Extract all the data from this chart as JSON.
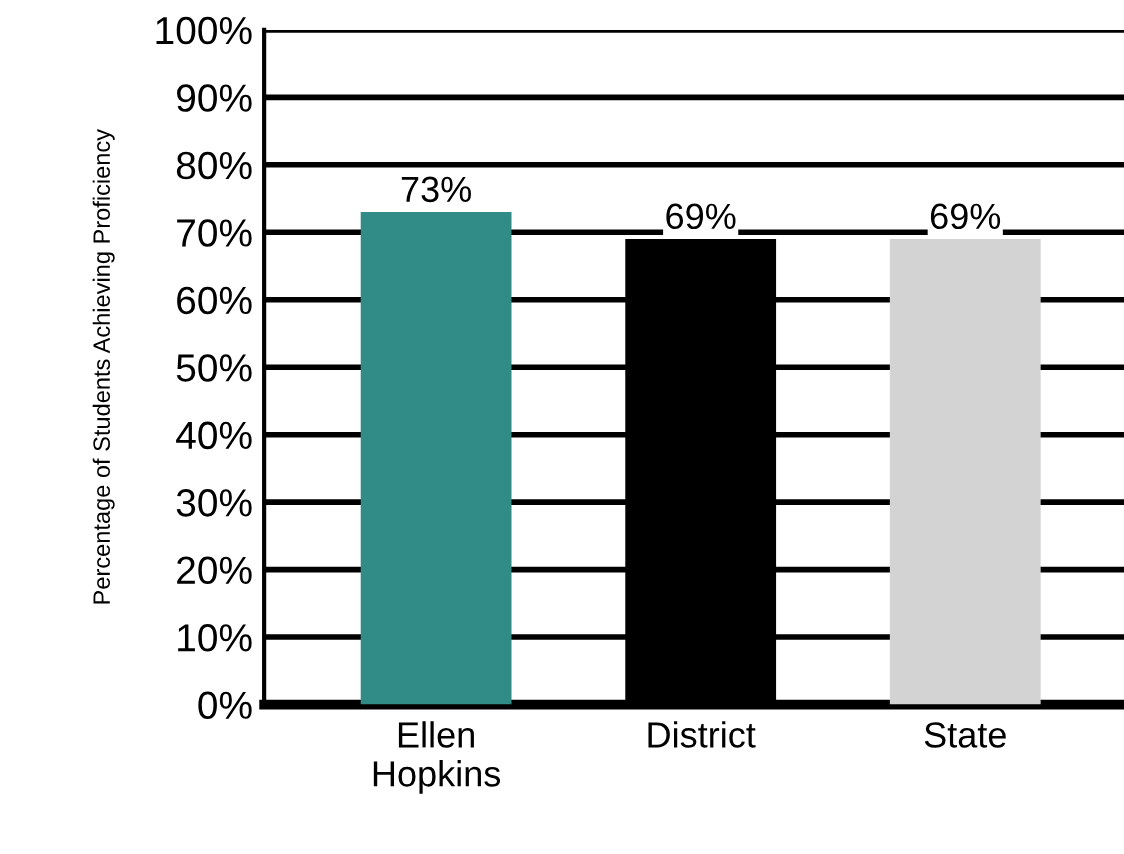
{
  "chart_data": {
    "type": "bar",
    "ylabel": "Percentage of Students Achieving Proficiency",
    "categories": [
      "Ellen\nHopkins",
      "District",
      "State"
    ],
    "values": [
      73,
      69,
      69
    ],
    "colors": [
      "#318c88",
      "#000000",
      "#d3d3d3"
    ],
    "value_labels": [
      "73%",
      "69%",
      "69%"
    ],
    "ylim": [
      0,
      100
    ],
    "yticks": [
      {
        "value": 0,
        "label": "0%"
      },
      {
        "value": 10,
        "label": "10%"
      },
      {
        "value": 20,
        "label": "20%"
      },
      {
        "value": 30,
        "label": "30%"
      },
      {
        "value": 40,
        "label": "40%"
      },
      {
        "value": 50,
        "label": "50%"
      },
      {
        "value": 60,
        "label": "60%"
      },
      {
        "value": 70,
        "label": "70%"
      },
      {
        "value": 80,
        "label": "80%"
      },
      {
        "value": 90,
        "label": "90%"
      },
      {
        "value": 100,
        "label": "100%"
      }
    ],
    "grid": "y"
  }
}
